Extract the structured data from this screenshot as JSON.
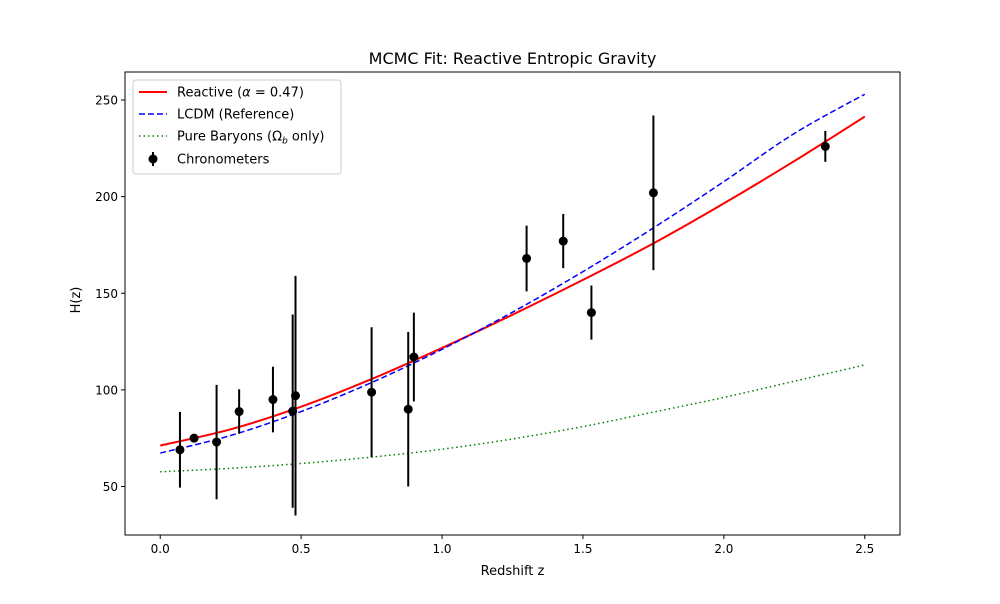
{
  "chart_data": {
    "type": "line",
    "title": "MCMC Fit: Reactive Entropic Gravity",
    "xlabel": "Redshift z",
    "ylabel": "H(z)",
    "xlim": [
      -0.125,
      2.625
    ],
    "ylim": [
      24.9,
      264.5
    ],
    "xticks": [
      0.0,
      0.5,
      1.0,
      1.5,
      2.0,
      2.5
    ],
    "xtick_labels": [
      "0.0",
      "0.5",
      "1.0",
      "1.5",
      "2.0",
      "2.5"
    ],
    "yticks": [
      50,
      100,
      150,
      200,
      250
    ],
    "ytick_labels": [
      "50",
      "100",
      "150",
      "200",
      "250"
    ],
    "legend_position": "upper-left",
    "grid": false,
    "series": [
      {
        "name_parts": [
          "Reactive (",
          "α",
          " = 0.47)"
        ],
        "style": "solid",
        "color": "#ff0000",
        "x": [
          0.0,
          0.25,
          0.5,
          0.75,
          1.0,
          1.25,
          1.5,
          1.75,
          2.0,
          2.25,
          2.5
        ],
        "y": [
          71.2,
          79.6,
          91.3,
          105.6,
          121.7,
          138.9,
          156.9,
          175.8,
          196.5,
          218.4,
          241.4
        ]
      },
      {
        "name": "LCDM (Reference)",
        "style": "dashed",
        "color": "#0000ff",
        "x": [
          0.0,
          0.25,
          0.5,
          0.75,
          1.0,
          1.25,
          1.5,
          1.75,
          2.0,
          2.25,
          2.5
        ],
        "y": [
          67.3,
          76.4,
          88.8,
          103.8,
          121.0,
          140.2,
          161.2,
          183.8,
          207.8,
          232.7,
          253.0
        ]
      },
      {
        "name_parts": [
          "Pure Baryons (",
          "Ω",
          "b",
          " only)"
        ],
        "style": "dotted",
        "color": "#008000",
        "x": [
          0.0,
          0.25,
          0.5,
          0.75,
          1.0,
          1.25,
          1.5,
          1.75,
          2.0,
          2.25,
          2.5
        ],
        "y": [
          57.6,
          59.4,
          61.9,
          65.2,
          69.3,
          74.6,
          81.0,
          88.5,
          96.1,
          104.5,
          112.9
        ]
      }
    ],
    "errorbar_series": {
      "name": "Chronometers",
      "color": "#000000",
      "points": [
        {
          "x": 0.07,
          "y": 69.0,
          "err": 19.6
        },
        {
          "x": 0.12,
          "y": 75.0,
          "err": 1.8
        },
        {
          "x": 0.2,
          "y": 73.0,
          "err": 29.6
        },
        {
          "x": 0.28,
          "y": 88.8,
          "err": 11.5
        },
        {
          "x": 0.4,
          "y": 95.0,
          "err": 17.0
        },
        {
          "x": 0.47,
          "y": 89.0,
          "err": 50.0
        },
        {
          "x": 0.48,
          "y": 97.0,
          "err": 62.0
        },
        {
          "x": 0.75,
          "y": 98.8,
          "err": 33.6
        },
        {
          "x": 0.88,
          "y": 90.0,
          "err": 40.0
        },
        {
          "x": 0.9,
          "y": 117.0,
          "err": 23.0
        },
        {
          "x": 1.3,
          "y": 168.0,
          "err": 17.0
        },
        {
          "x": 1.43,
          "y": 177.0,
          "err": 14.0
        },
        {
          "x": 1.53,
          "y": 140.0,
          "err": 14.0
        },
        {
          "x": 1.75,
          "y": 202.0,
          "err": 40.0
        },
        {
          "x": 2.36,
          "y": 226.0,
          "err": 8.0
        }
      ]
    }
  }
}
